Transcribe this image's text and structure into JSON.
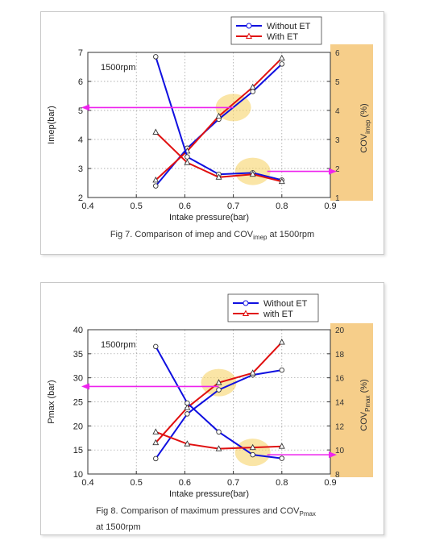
{
  "colors": {
    "without_et": "#1010e0",
    "with_et": "#e01010",
    "arrow": "#ee22ee",
    "cov_band": "#f6ce8a",
    "highlight": "#f7d36a"
  },
  "fig7": {
    "caption_pre": "Fig 7. Comparison of imep and COV",
    "caption_sub": "imep",
    "caption_post": " at 1500rpm"
  },
  "fig8": {
    "caption_pre": "Fig 8. Comparison of maximum pressures and COV",
    "caption_sub": "Pmax",
    "caption_line2": "at 1500rpm"
  },
  "chart_data": [
    {
      "type": "line",
      "xlabel": "Intake pressure(bar)",
      "ylabel": "Imep(bar)",
      "y2label": "COV",
      "y2label_sub": "imep",
      "y2label_post": "(%)",
      "annotation": "1500rpm",
      "xlim": [
        0.4,
        0.9
      ],
      "ylim": [
        2,
        7
      ],
      "y2lim": [
        1,
        6
      ],
      "xticks": [
        "0.4",
        "0.5",
        "0.6",
        "0.7",
        "0.8",
        "0.9"
      ],
      "yticks": [
        "2",
        "3",
        "4",
        "5",
        "6",
        "7"
      ],
      "y2ticks": [
        "1",
        "2",
        "3",
        "4",
        "5",
        "6"
      ],
      "grid": "dotted",
      "legend_position": "top-right",
      "series": [
        {
          "name": "Without ET",
          "axis": "left",
          "marker": "circle",
          "x": [
            0.54,
            0.605,
            0.67,
            0.74,
            0.8
          ],
          "values": [
            2.4,
            3.7,
            4.7,
            5.65,
            6.6
          ]
        },
        {
          "name": "With ET",
          "axis": "left",
          "marker": "triangle",
          "x": [
            0.54,
            0.605,
            0.67,
            0.74,
            0.8
          ],
          "values": [
            2.6,
            3.6,
            4.8,
            5.8,
            6.8
          ]
        },
        {
          "name": "Without ET",
          "axis": "right",
          "marker": "circle",
          "x": [
            0.54,
            0.605,
            0.67,
            0.74,
            0.8
          ],
          "values": [
            5.85,
            2.4,
            1.8,
            1.85,
            1.6
          ]
        },
        {
          "name": "With ET",
          "axis": "right",
          "marker": "triangle",
          "x": [
            0.54,
            0.605,
            0.67,
            0.74,
            0.8
          ],
          "values": [
            3.25,
            2.2,
            1.7,
            1.8,
            1.55
          ]
        }
      ],
      "arrows": [
        {
          "direction": "left",
          "from": [
            0.7,
            5.1
          ],
          "to": [
            0.4,
            5.1
          ]
        },
        {
          "direction": "right",
          "from": [
            0.74,
            2.9
          ],
          "to": [
            0.9,
            2.9
          ]
        }
      ],
      "highlights": [
        {
          "x": 0.7,
          "y": 5.1
        },
        {
          "x": 0.74,
          "y": 2.9
        }
      ]
    },
    {
      "type": "line",
      "xlabel": "Intake pressure(bar)",
      "ylabel": "Pmax (bar)",
      "y2label": "COV",
      "y2label_sub": "Pmax",
      "y2label_post": "(%)",
      "annotation": "1500rpm",
      "xlim": [
        0.4,
        0.9
      ],
      "ylim": [
        10,
        40
      ],
      "y2lim": [
        8,
        20
      ],
      "xticks": [
        "0.4",
        "0.5",
        "0.6",
        "0.7",
        "0.8",
        "0.9"
      ],
      "yticks": [
        "10",
        "15",
        "20",
        "25",
        "30",
        "35",
        "40"
      ],
      "y2ticks": [
        "8",
        "10",
        "12",
        "14",
        "16",
        "18",
        "20"
      ],
      "grid": "dotted",
      "legend_position": "top-right",
      "series": [
        {
          "name": "Without ET",
          "axis": "left",
          "marker": "circle",
          "x": [
            0.54,
            0.605,
            0.67,
            0.74,
            0.8
          ],
          "values": [
            13.2,
            22.5,
            27.5,
            30.6,
            31.6
          ]
        },
        {
          "name": "with ET",
          "axis": "left",
          "marker": "triangle",
          "x": [
            0.54,
            0.605,
            0.67,
            0.74,
            0.8
          ],
          "values": [
            16.5,
            23.8,
            29.0,
            31.0,
            37.4
          ]
        },
        {
          "name": "Without ET",
          "axis": "right",
          "marker": "circle",
          "x": [
            0.54,
            0.605,
            0.67,
            0.74,
            0.8
          ],
          "values": [
            18.6,
            13.9,
            11.5,
            9.6,
            9.3
          ]
        },
        {
          "name": "with ET",
          "axis": "right",
          "marker": "triangle",
          "x": [
            0.54,
            0.605,
            0.67,
            0.74,
            0.8
          ],
          "values": [
            11.5,
            10.5,
            10.1,
            10.2,
            10.3
          ]
        }
      ],
      "arrows": [
        {
          "direction": "left",
          "from": [
            0.67,
            28.2
          ],
          "to": [
            0.4,
            28.2
          ]
        },
        {
          "direction": "right",
          "from": [
            0.74,
            14.0
          ],
          "to": [
            0.9,
            14.0
          ]
        }
      ],
      "highlights": [
        {
          "x": 0.67,
          "y": 29.0
        },
        {
          "x": 0.74,
          "y": 14.5
        }
      ]
    }
  ]
}
